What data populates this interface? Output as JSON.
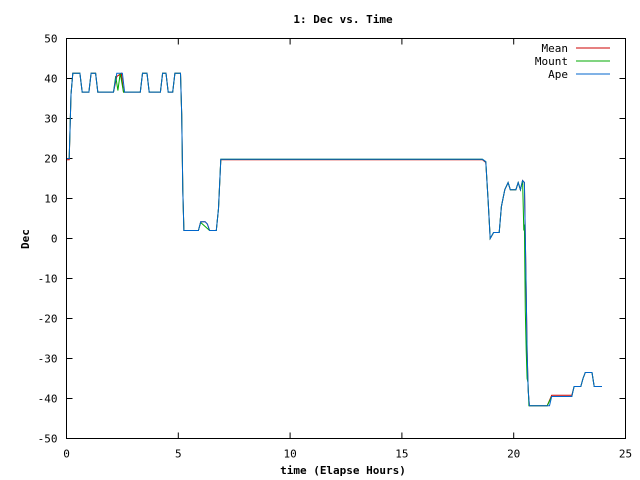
{
  "chart_data": {
    "type": "line",
    "title": "1: Dec vs. Time",
    "xlabel": "time (Elapse Hours)",
    "ylabel": "Dec",
    "xlim": [
      0,
      25
    ],
    "ylim": [
      -50,
      50
    ],
    "xticks": [
      0,
      5,
      10,
      15,
      20,
      25
    ],
    "yticks": [
      -50,
      -40,
      -30,
      -20,
      -10,
      0,
      10,
      20,
      30,
      40,
      50
    ],
    "grid": false,
    "legend_position": "top-right",
    "series": [
      {
        "name": "Mean",
        "color": "#cc0000",
        "points": [
          [
            0.0,
            19.7
          ],
          [
            0.12,
            19.7
          ],
          [
            0.2,
            36
          ],
          [
            0.28,
            41.3
          ],
          [
            0.6,
            41.3
          ],
          [
            0.7,
            36.6
          ],
          [
            1.0,
            36.6
          ],
          [
            1.1,
            41.3
          ],
          [
            1.3,
            41.3
          ],
          [
            1.4,
            36.6
          ],
          [
            2.1,
            36.6
          ],
          [
            2.25,
            40.5
          ],
          [
            2.45,
            41.3
          ],
          [
            2.55,
            36.6
          ],
          [
            3.3,
            36.6
          ],
          [
            3.4,
            41.3
          ],
          [
            3.6,
            41.3
          ],
          [
            3.7,
            36.6
          ],
          [
            4.2,
            36.6
          ],
          [
            4.3,
            41.3
          ],
          [
            4.45,
            41.3
          ],
          [
            4.55,
            36.6
          ],
          [
            4.75,
            36.6
          ],
          [
            4.85,
            41.3
          ],
          [
            5.1,
            41.3
          ],
          [
            5.15,
            31
          ],
          [
            5.2,
            12
          ],
          [
            5.25,
            2.0
          ],
          [
            5.9,
            2.0
          ],
          [
            6.0,
            4.2
          ],
          [
            6.2,
            4.2
          ],
          [
            6.3,
            3.6
          ],
          [
            6.4,
            2.0
          ],
          [
            6.7,
            2.0
          ],
          [
            6.8,
            7.5
          ],
          [
            6.9,
            19.7
          ],
          [
            7.3,
            19.7
          ],
          [
            18.6,
            19.7
          ],
          [
            18.75,
            19.0
          ],
          [
            18.85,
            10
          ],
          [
            18.95,
            0
          ],
          [
            19.1,
            1.5
          ],
          [
            19.35,
            1.5
          ],
          [
            19.45,
            8
          ],
          [
            19.6,
            12.2
          ],
          [
            19.75,
            14.0
          ],
          [
            19.85,
            12.2
          ],
          [
            20.1,
            12.2
          ],
          [
            20.2,
            14.0
          ],
          [
            20.3,
            12.2
          ],
          [
            20.4,
            14.5
          ],
          [
            20.48,
            14.0
          ],
          [
            20.55,
            -10
          ],
          [
            20.6,
            -28
          ],
          [
            20.65,
            -38
          ],
          [
            20.7,
            -41.8
          ],
          [
            21.3,
            -41.8
          ],
          [
            21.5,
            -41.8
          ],
          [
            21.7,
            -39.2
          ],
          [
            22.6,
            -39.2
          ],
          [
            22.7,
            -37
          ],
          [
            23.0,
            -37
          ],
          [
            23.1,
            -35
          ],
          [
            23.2,
            -33.5
          ],
          [
            23.5,
            -33.5
          ],
          [
            23.6,
            -37
          ],
          [
            23.95,
            -37
          ]
        ]
      },
      {
        "name": "Mount",
        "color": "#00aa00",
        "points": [
          [
            0.0,
            20.0
          ],
          [
            0.12,
            20.0
          ],
          [
            0.2,
            36
          ],
          [
            0.28,
            41.3
          ],
          [
            0.6,
            41.3
          ],
          [
            0.7,
            36.6
          ],
          [
            1.0,
            36.6
          ],
          [
            1.1,
            41.3
          ],
          [
            1.3,
            41.3
          ],
          [
            1.4,
            36.6
          ],
          [
            2.1,
            36.6
          ],
          [
            2.2,
            40.6
          ],
          [
            2.3,
            37
          ],
          [
            2.4,
            41.3
          ],
          [
            2.55,
            36.6
          ],
          [
            3.3,
            36.6
          ],
          [
            3.4,
            41.3
          ],
          [
            3.6,
            41.3
          ],
          [
            3.7,
            36.6
          ],
          [
            4.2,
            36.6
          ],
          [
            4.3,
            41.3
          ],
          [
            4.45,
            41.3
          ],
          [
            4.55,
            36.6
          ],
          [
            4.75,
            36.6
          ],
          [
            4.85,
            41.3
          ],
          [
            5.1,
            41.3
          ],
          [
            5.15,
            31
          ],
          [
            5.2,
            12
          ],
          [
            5.25,
            2.0
          ],
          [
            5.9,
            2.0
          ],
          [
            6.0,
            4.0
          ],
          [
            6.4,
            2.0
          ],
          [
            6.7,
            2.0
          ],
          [
            6.8,
            7.5
          ],
          [
            6.9,
            19.8
          ],
          [
            18.6,
            19.8
          ],
          [
            18.75,
            19.2
          ],
          [
            18.85,
            10
          ],
          [
            18.95,
            0
          ],
          [
            19.1,
            1.5
          ],
          [
            19.35,
            1.5
          ],
          [
            19.45,
            8
          ],
          [
            19.6,
            12.2
          ],
          [
            19.75,
            14.0
          ],
          [
            19.85,
            12.2
          ],
          [
            20.1,
            12.2
          ],
          [
            20.2,
            14.0
          ],
          [
            20.3,
            12.2
          ],
          [
            20.4,
            14.5
          ],
          [
            20.45,
            2.0
          ],
          [
            20.48,
            3.5
          ],
          [
            20.52,
            -18
          ],
          [
            20.56,
            -28
          ],
          [
            20.6,
            -35
          ],
          [
            20.64,
            -36
          ],
          [
            20.68,
            -41.8
          ],
          [
            21.5,
            -41.8
          ],
          [
            21.7,
            -39.5
          ],
          [
            22.6,
            -39.5
          ],
          [
            22.7,
            -37
          ],
          [
            23.0,
            -37
          ],
          [
            23.1,
            -35
          ],
          [
            23.2,
            -33.5
          ],
          [
            23.5,
            -33.5
          ],
          [
            23.6,
            -37
          ],
          [
            23.95,
            -37
          ]
        ]
      },
      {
        "name": "Ape",
        "color": "#0066cc",
        "points": [
          [
            0.0,
            20.0
          ],
          [
            0.12,
            20.0
          ],
          [
            0.2,
            36
          ],
          [
            0.28,
            41.3
          ],
          [
            0.6,
            41.3
          ],
          [
            0.7,
            36.6
          ],
          [
            1.0,
            36.6
          ],
          [
            1.1,
            41.3
          ],
          [
            1.3,
            41.3
          ],
          [
            1.4,
            36.6
          ],
          [
            2.1,
            36.6
          ],
          [
            2.25,
            41.3
          ],
          [
            2.5,
            41.3
          ],
          [
            2.6,
            36.6
          ],
          [
            3.3,
            36.6
          ],
          [
            3.4,
            41.3
          ],
          [
            3.6,
            41.3
          ],
          [
            3.7,
            36.6
          ],
          [
            4.2,
            36.6
          ],
          [
            4.3,
            41.3
          ],
          [
            4.45,
            41.3
          ],
          [
            4.55,
            36.6
          ],
          [
            4.75,
            36.6
          ],
          [
            4.85,
            41.3
          ],
          [
            5.1,
            41.3
          ],
          [
            5.15,
            31
          ],
          [
            5.2,
            12
          ],
          [
            5.25,
            2.0
          ],
          [
            5.9,
            2.0
          ],
          [
            6.0,
            4.2
          ],
          [
            6.2,
            4.2
          ],
          [
            6.3,
            3.6
          ],
          [
            6.4,
            2.0
          ],
          [
            6.7,
            2.0
          ],
          [
            6.8,
            7.5
          ],
          [
            6.9,
            19.8
          ],
          [
            18.6,
            19.8
          ],
          [
            18.75,
            19.2
          ],
          [
            18.85,
            10
          ],
          [
            18.95,
            0
          ],
          [
            19.1,
            1.5
          ],
          [
            19.35,
            1.5
          ],
          [
            19.45,
            8
          ],
          [
            19.6,
            12.2
          ],
          [
            19.75,
            14.0
          ],
          [
            19.85,
            12.2
          ],
          [
            20.1,
            12.2
          ],
          [
            20.2,
            14.0
          ],
          [
            20.3,
            12.2
          ],
          [
            20.4,
            14.5
          ],
          [
            20.48,
            14.0
          ],
          [
            20.55,
            -10
          ],
          [
            20.6,
            -28
          ],
          [
            20.65,
            -38
          ],
          [
            20.7,
            -41.8
          ],
          [
            21.3,
            -41.8
          ],
          [
            21.6,
            -41.8
          ],
          [
            21.7,
            -39.5
          ],
          [
            22.6,
            -39.5
          ],
          [
            22.7,
            -37
          ],
          [
            23.0,
            -37
          ],
          [
            23.1,
            -35
          ],
          [
            23.2,
            -33.5
          ],
          [
            23.5,
            -33.5
          ],
          [
            23.6,
            -37
          ],
          [
            23.95,
            -37
          ]
        ]
      }
    ]
  }
}
